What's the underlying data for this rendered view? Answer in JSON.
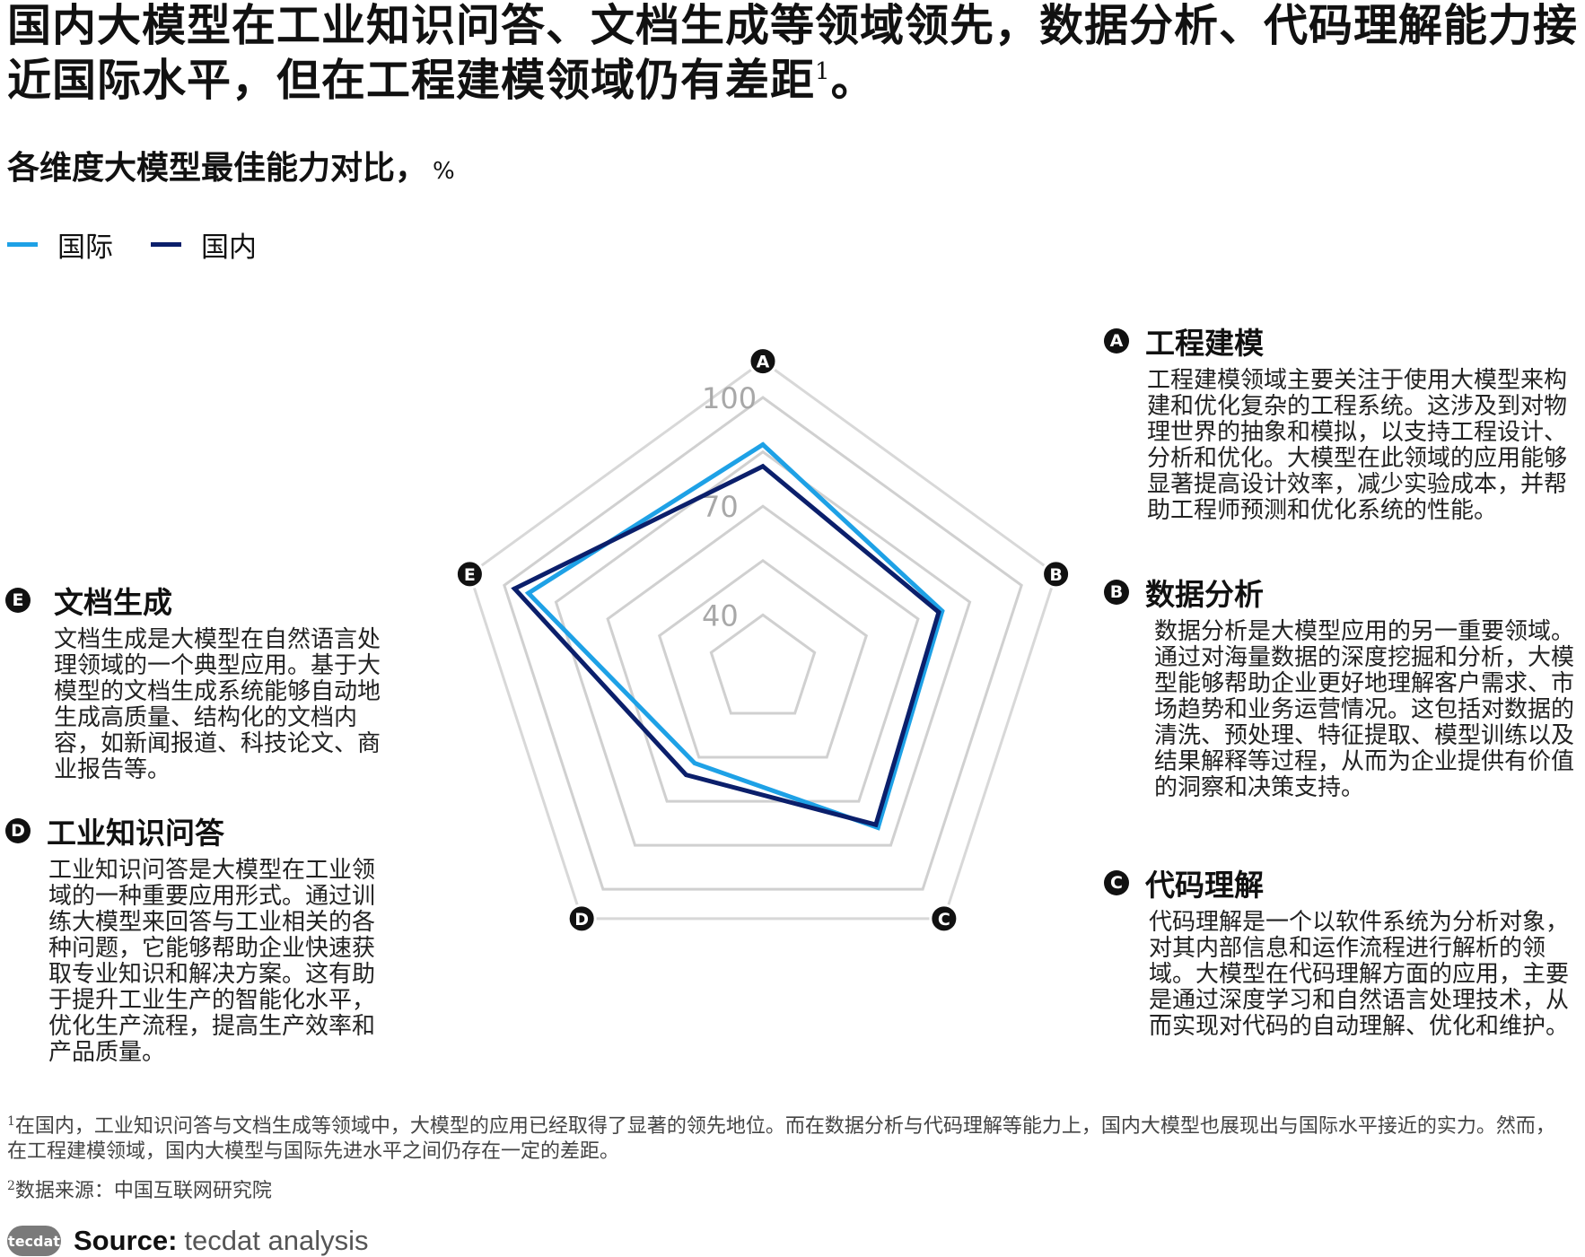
{
  "headline": {
    "text": "国内大模型在工业知识问答、文档生成等领域领先，数据分析、代码理解能力接近国际水平，但在工程建模领域仍有差距",
    "sup": "1",
    "end": "。"
  },
  "subtitle": {
    "text": "各维度大模型最佳能力对比，",
    "unit": "%"
  },
  "chart_data": {
    "type": "radar",
    "axes": [
      "A",
      "B",
      "C",
      "D",
      "E"
    ],
    "ticks": [
      40,
      70,
      100
    ],
    "rings": [
      40,
      55,
      70,
      85,
      100
    ],
    "range": [
      25,
      110
    ],
    "grid": true,
    "legend_position": "top-left",
    "series": [
      {
        "name": "国际",
        "color": "#1ea1e6",
        "values": [
          87,
          77,
          79,
          57,
          93
        ]
      },
      {
        "name": "国内",
        "color": "#0b1f6b",
        "values": [
          81,
          76,
          78,
          61,
          97
        ]
      }
    ]
  },
  "panels": {
    "A": {
      "badge": "A",
      "title": "工程建模",
      "desc": "工程建模领域主要关注于使用大模型来构建和优化复杂的工程系统。这涉及到对物理世界的抽象和模拟，以支持工程设计、分析和优化。大模型在此领域的应用能够显著提高设计效率，减少实验成本，并帮助工程师预测和优化系统的性能。"
    },
    "B": {
      "badge": "B",
      "title": "数据分析",
      "desc": "数据分析是大模型应用的另一重要领域。通过对海量数据的深度挖掘和分析，大模型能够帮助企业更好地理解客户需求、市场趋势和业务运营情况。这包括对数据的清洗、预处理、特征提取、模型训练以及结果解释等过程，从而为企业提供有价值的洞察和决策支持。"
    },
    "C": {
      "badge": "C",
      "title": "代码理解",
      "desc": "代码理解是一个以软件系统为分析对象，对其内部信息和运作流程进行解析的领域。大模型在代码理解方面的应用，主要是通过深度学习和自然语言处理技术，从而实现对代码的自动理解、优化和维护。"
    },
    "D": {
      "badge": "D",
      "title": "工业知识问答",
      "desc": "工业知识问答是大模型在工业领域的一种重要应用形式。通过训练大模型来回答与工业相关的各种问题，它能够帮助企业快速获取专业知识和解决方案。这有助于提升工业生产的智能化水平，优化生产流程，提高生产效率和产品质量。"
    },
    "E": {
      "badge": "E",
      "title": "文档生成",
      "desc": "文档生成是大模型在自然语言处理领域的一个典型应用。基于大模型的文档生成系统能够自动地生成高质量、结构化的文档内容，如新闻报道、科技论文、商业报告等。"
    }
  },
  "footnotes": {
    "note1_sup": "1",
    "note1": "在国内，工业知识问答与文档生成等领域中，大模型的应用已经取得了显著的领先地位。而在数据分析与代码理解等能力上，国内大模型也展现出与国际水平接近的实力。然而，在工程建模领域，国内大模型与国际先进水平之间仍存在一定的差距。",
    "note2_sup": "2",
    "note2": "数据来源：中国互联网研究院"
  },
  "source": {
    "logo": "tecdat",
    "label": "Source:",
    "text": "tecdat analysis"
  }
}
